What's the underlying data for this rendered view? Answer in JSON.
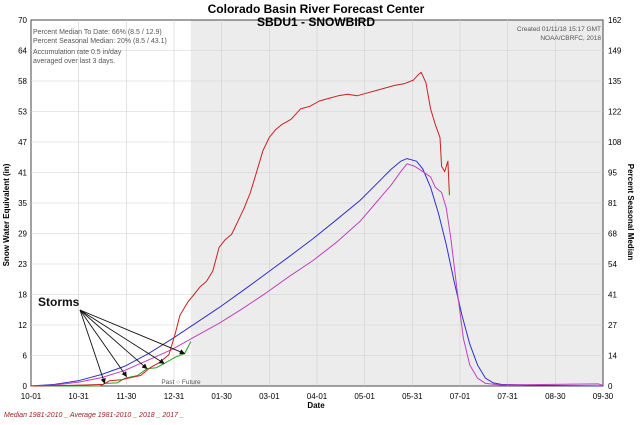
{
  "chart_data": {
    "type": "line",
    "title": "Colorado Basin River Forecast Center",
    "subtitle": "SBDU1 - SNOWBIRD",
    "xlabel": "Date",
    "ylabel": "Snow Water Equivalent (in)",
    "y2label": "Percent Seasonal Median",
    "x_ticks": [
      "10-01",
      "10-31",
      "11-30",
      "12-31",
      "01-30",
      "03-01",
      "04-01",
      "05-01",
      "05-31",
      "07-01",
      "07-31",
      "08-30",
      "09-30"
    ],
    "y_ticks": [
      "0",
      "6",
      "12",
      "18",
      "23",
      "29",
      "35",
      "41",
      "47",
      "53",
      "58",
      "64",
      "70"
    ],
    "y2_ticks": [
      "0",
      "14",
      "27",
      "41",
      "54",
      "68",
      "81",
      "95",
      "108",
      "122",
      "135",
      "149",
      "162"
    ],
    "ylim": [
      0,
      70
    ],
    "y2lim": [
      0,
      162
    ],
    "xlim_days": [
      0,
      365
    ],
    "past_future_label": "Past ○ Future",
    "past_cutoff_day": 102,
    "info_left": [
      "Percent Median To Date: 66% (8.5 / 12.9)",
      "Percent Seasonal Median: 20% (8.5 / 43.1)",
      "Accumulation rate 0.5 in/day",
      "averaged over last 3 days."
    ],
    "info_right": [
      "Created 01/11/18 15:17 GMT",
      "NOAA/CBRFC, 2018"
    ],
    "legend_caption": "Median 1981-2010 _ Average 1981-2010 _ 2018 _ 2017 _",
    "annotation": {
      "text": "Storms",
      "targets": [
        [
          47,
          0.5
        ],
        [
          61,
          1.8
        ],
        [
          74,
          3.3
        ],
        [
          85,
          4.3
        ],
        [
          98,
          6.2
        ]
      ]
    },
    "series": [
      {
        "name": "Median 1981-2010",
        "color": "#3030d0",
        "points": [
          [
            0,
            0
          ],
          [
            15,
            0.3
          ],
          [
            30,
            1.0
          ],
          [
            45,
            2.2
          ],
          [
            60,
            3.8
          ],
          [
            75,
            6.2
          ],
          [
            90,
            9.0
          ],
          [
            105,
            12.0
          ],
          [
            120,
            15.0
          ],
          [
            135,
            18.2
          ],
          [
            150,
            21.5
          ],
          [
            165,
            24.8
          ],
          [
            180,
            28.2
          ],
          [
            195,
            31.8
          ],
          [
            210,
            35.5
          ],
          [
            220,
            38.5
          ],
          [
            230,
            41.5
          ],
          [
            236,
            43.0
          ],
          [
            240,
            43.5
          ],
          [
            246,
            43.0
          ],
          [
            250,
            41.5
          ],
          [
            255,
            38.0
          ],
          [
            260,
            33.0
          ],
          [
            265,
            27.0
          ],
          [
            270,
            20.0
          ],
          [
            275,
            13.5
          ],
          [
            280,
            8.0
          ],
          [
            285,
            4.0
          ],
          [
            290,
            1.5
          ],
          [
            295,
            0.6
          ],
          [
            300,
            0.3
          ],
          [
            330,
            0.1
          ],
          [
            365,
            0
          ]
        ]
      },
      {
        "name": "Average 1981-2010",
        "color": "#c040c0",
        "points": [
          [
            0,
            0
          ],
          [
            15,
            0.2
          ],
          [
            30,
            0.7
          ],
          [
            45,
            1.6
          ],
          [
            60,
            3.0
          ],
          [
            75,
            5.0
          ],
          [
            90,
            7.0
          ],
          [
            105,
            9.5
          ],
          [
            120,
            12.0
          ],
          [
            135,
            14.8
          ],
          [
            150,
            17.8
          ],
          [
            165,
            21.0
          ],
          [
            180,
            24.0
          ],
          [
            195,
            27.5
          ],
          [
            210,
            31.5
          ],
          [
            220,
            35.0
          ],
          [
            230,
            38.5
          ],
          [
            236,
            41.0
          ],
          [
            240,
            42.5
          ],
          [
            245,
            42.0
          ],
          [
            250,
            41.0
          ],
          [
            255,
            40.0
          ],
          [
            258,
            38.0
          ],
          [
            262,
            37.0
          ],
          [
            265,
            34.0
          ],
          [
            268,
            28.0
          ],
          [
            272,
            18.0
          ],
          [
            276,
            9.0
          ],
          [
            280,
            4.0
          ],
          [
            285,
            1.5
          ],
          [
            290,
            0.5
          ],
          [
            300,
            0.2
          ],
          [
            362,
            0.4
          ],
          [
            365,
            0.1
          ]
        ]
      },
      {
        "name": "2018",
        "color": "#22a022",
        "points": [
          [
            0,
            0
          ],
          [
            30,
            0
          ],
          [
            44,
            0
          ],
          [
            47,
            0.5
          ],
          [
            55,
            0.6
          ],
          [
            60,
            1.5
          ],
          [
            68,
            2.0
          ],
          [
            74,
            3.3
          ],
          [
            80,
            3.5
          ],
          [
            85,
            4.3
          ],
          [
            92,
            5.5
          ],
          [
            98,
            6.2
          ],
          [
            102,
            8.5
          ]
        ]
      },
      {
        "name": "2017",
        "color": "#cc2020",
        "points": [
          [
            0,
            0
          ],
          [
            20,
            0.1
          ],
          [
            35,
            0.2
          ],
          [
            46,
            0.3
          ],
          [
            50,
            1.0
          ],
          [
            58,
            1.2
          ],
          [
            62,
            1.5
          ],
          [
            70,
            2.0
          ],
          [
            76,
            3.5
          ],
          [
            82,
            4.5
          ],
          [
            88,
            6.0
          ],
          [
            92,
            10.0
          ],
          [
            95,
            13.5
          ],
          [
            100,
            16.0
          ],
          [
            104,
            17.5
          ],
          [
            108,
            19.0
          ],
          [
            112,
            20.0
          ],
          [
            116,
            22.0
          ],
          [
            120,
            26.5
          ],
          [
            124,
            28.0
          ],
          [
            128,
            29.0
          ],
          [
            132,
            31.5
          ],
          [
            136,
            34.0
          ],
          [
            140,
            37.0
          ],
          [
            144,
            41.0
          ],
          [
            148,
            45.0
          ],
          [
            152,
            47.5
          ],
          [
            156,
            49.0
          ],
          [
            160,
            50.0
          ],
          [
            166,
            51.0
          ],
          [
            172,
            53.0
          ],
          [
            178,
            53.5
          ],
          [
            184,
            54.5
          ],
          [
            190,
            55.0
          ],
          [
            196,
            55.5
          ],
          [
            202,
            55.8
          ],
          [
            208,
            55.5
          ],
          [
            214,
            56.0
          ],
          [
            220,
            56.5
          ],
          [
            226,
            57.0
          ],
          [
            232,
            57.5
          ],
          [
            238,
            57.8
          ],
          [
            244,
            58.5
          ],
          [
            247,
            59.5
          ],
          [
            249,
            60.0
          ],
          [
            252,
            58.0
          ],
          [
            255,
            53.0
          ],
          [
            258,
            50.0
          ],
          [
            261,
            47.5
          ],
          [
            262,
            42.0
          ],
          [
            264,
            41.0
          ],
          [
            266,
            43.0
          ],
          [
            267,
            36.5
          ]
        ]
      }
    ]
  }
}
